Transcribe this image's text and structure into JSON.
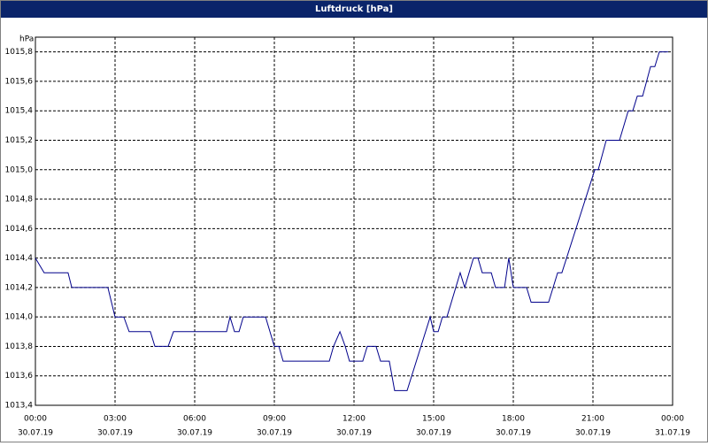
{
  "chart_data": {
    "type": "line",
    "title": "Luftdruck [hPa]",
    "ylabel": "hPa",
    "xlim": [
      0,
      24
    ],
    "ylim": [
      1013.4,
      1015.9
    ],
    "xticks": [
      {
        "value": 0,
        "label": "00:00"
      },
      {
        "value": 3,
        "label": "03:00"
      },
      {
        "value": 6,
        "label": "06:00"
      },
      {
        "value": 9,
        "label": "09:00"
      },
      {
        "value": 12,
        "label": "12:00"
      },
      {
        "value": 15,
        "label": "15:00"
      },
      {
        "value": 18,
        "label": "18:00"
      },
      {
        "value": 21,
        "label": "21:00"
      },
      {
        "value": 24,
        "label": "00:00"
      }
    ],
    "xtick_dates": [
      "30.07.19",
      "30.07.19",
      "30.07.19",
      "30.07.19",
      "30.07.19",
      "30.07.19",
      "30.07.19",
      "30.07.19",
      "31.07.19"
    ],
    "yticks": [
      {
        "value": 1013.4,
        "label": "1013,4"
      },
      {
        "value": 1013.6,
        "label": "1013,6"
      },
      {
        "value": 1013.8,
        "label": "1013,8"
      },
      {
        "value": 1014.0,
        "label": "1014,0"
      },
      {
        "value": 1014.2,
        "label": "1014,2"
      },
      {
        "value": 1014.4,
        "label": "1014,4"
      },
      {
        "value": 1014.6,
        "label": "1014,6"
      },
      {
        "value": 1014.8,
        "label": "1014,8"
      },
      {
        "value": 1015.0,
        "label": "1015,0"
      },
      {
        "value": 1015.2,
        "label": "1015,2"
      },
      {
        "value": 1015.4,
        "label": "1015,4"
      },
      {
        "value": 1015.6,
        "label": "1015,6"
      },
      {
        "value": 1015.8,
        "label": "1015,8"
      }
    ],
    "grid": true,
    "color": "#00008b",
    "x": [
      0,
      0.33,
      1.23,
      1.37,
      2.73,
      3.0,
      3.33,
      3.53,
      4.33,
      4.5,
      5.0,
      5.2,
      7.2,
      7.33,
      7.5,
      7.67,
      7.83,
      8.67,
      9.0,
      9.17,
      9.33,
      11.07,
      11.23,
      11.47,
      11.67,
      11.83,
      12.33,
      12.5,
      12.83,
      13.0,
      13.33,
      13.53,
      14.0,
      14.87,
      15.0,
      15.17,
      15.33,
      15.5,
      16.0,
      16.17,
      16.5,
      16.67,
      16.83,
      17.17,
      17.33,
      17.67,
      17.83,
      18.0,
      18.5,
      18.67,
      19.33,
      19.67,
      19.83,
      21.07,
      21.2,
      21.5,
      22.0,
      22.33,
      22.5,
      22.67,
      22.87,
      23.17,
      23.33,
      23.5,
      23.83
    ],
    "values": [
      1014.4,
      1014.3,
      1014.3,
      1014.2,
      1014.2,
      1014.0,
      1014.0,
      1013.9,
      1013.9,
      1013.8,
      1013.8,
      1013.9,
      1013.9,
      1014.0,
      1013.9,
      1013.9,
      1014.0,
      1014.0,
      1013.8,
      1013.8,
      1013.7,
      1013.7,
      1013.8,
      1013.9,
      1013.8,
      1013.7,
      1013.7,
      1013.8,
      1013.8,
      1013.7,
      1013.7,
      1013.5,
      1013.5,
      1014.0,
      1013.9,
      1013.9,
      1014.0,
      1014.0,
      1014.3,
      1014.2,
      1014.4,
      1014.4,
      1014.3,
      1014.3,
      1014.2,
      1014.2,
      1014.4,
      1014.2,
      1014.2,
      1014.1,
      1014.1,
      1014.3,
      1014.3,
      1015.0,
      1015.0,
      1015.2,
      1015.2,
      1015.4,
      1015.4,
      1015.5,
      1015.5,
      1015.7,
      1015.7,
      1015.8,
      1015.8
    ]
  }
}
